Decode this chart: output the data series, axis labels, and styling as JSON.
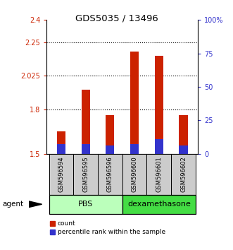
{
  "title": "GDS5035 / 13496",
  "samples": [
    "GSM596594",
    "GSM596595",
    "GSM596596",
    "GSM596600",
    "GSM596601",
    "GSM596602"
  ],
  "red_values": [
    1.65,
    1.93,
    1.76,
    2.19,
    2.16,
    1.76
  ],
  "blue_values": [
    1.565,
    1.565,
    1.555,
    1.565,
    1.6,
    1.558
  ],
  "bar_bottom": 1.5,
  "ylim_left": [
    1.5,
    2.4
  ],
  "yticks_left": [
    1.5,
    1.8,
    2.025,
    2.25,
    2.4
  ],
  "ytick_labels_left": [
    "1.5",
    "1.8",
    "2.025",
    "2.25",
    "2.4"
  ],
  "ylim_right": [
    0,
    100
  ],
  "yticks_right": [
    0,
    25,
    50,
    75,
    100
  ],
  "ytick_labels_right": [
    "0",
    "25",
    "50",
    "75",
    "100%"
  ],
  "red_color": "#CC2200",
  "blue_color": "#3333CC",
  "bar_width": 0.35,
  "gridlines": [
    1.8,
    2.025,
    2.25
  ],
  "pbs_color": "#BBFFBB",
  "dex_color": "#44DD44",
  "legend_red": "count",
  "legend_blue": "percentile rank within the sample"
}
